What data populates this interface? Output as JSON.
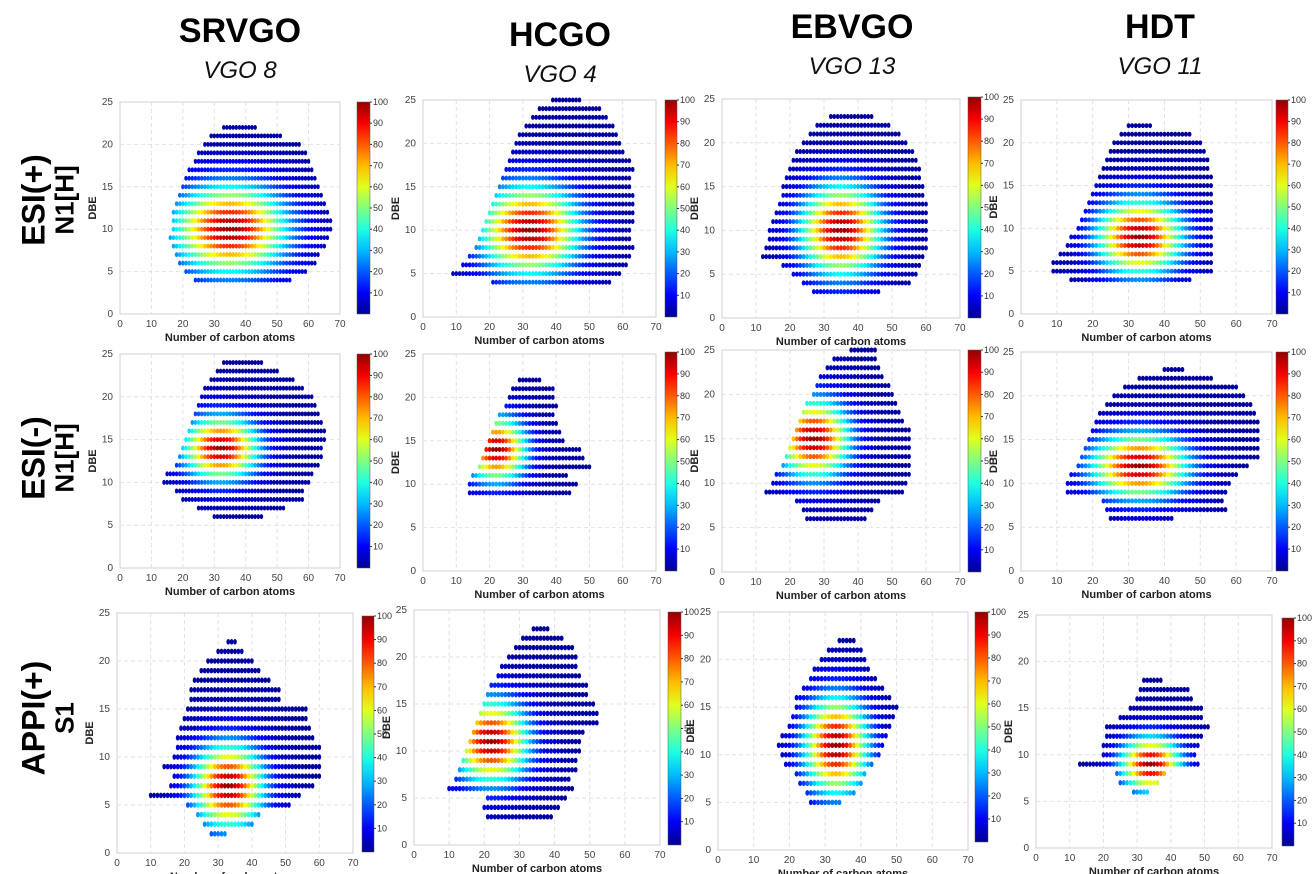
{
  "columns": [
    {
      "name": "SRVGO",
      "sub": "VGO 8"
    },
    {
      "name": "HCGO",
      "sub": "VGO 4"
    },
    {
      "name": "EBVGO",
      "sub": "VGO 13"
    },
    {
      "name": "HDT",
      "sub": "VGO 11"
    }
  ],
  "rows": [
    {
      "line1": "ESI(+)",
      "line2": "N1[H]"
    },
    {
      "line1": "ESI(-)",
      "line2": "N1[H]"
    },
    {
      "line1": "APPI(+)",
      "line2": "S1"
    }
  ],
  "axes": {
    "xlabel": "Number of carbon atoms",
    "ylabel": "DBE",
    "xlim": [
      0,
      70
    ],
    "ylim": [
      0,
      25
    ],
    "xticks": [
      0,
      10,
      20,
      30,
      40,
      50,
      60,
      70
    ],
    "yticks": [
      0,
      5,
      10,
      15,
      20,
      25
    ],
    "grid": true
  },
  "colorbar": {
    "min": 0,
    "max": 100,
    "ticks": [
      10,
      20,
      30,
      40,
      50,
      60,
      70,
      80,
      90,
      100
    ],
    "colormap": "jet"
  },
  "chart_data": [
    {
      "type": "heatmap",
      "row": "ESI(+) N1[H]",
      "column": "SRVGO",
      "sample": "VGO 8",
      "dbe_min": 4,
      "dbe_max": 22,
      "x_center": 35,
      "y_center": 10,
      "x_spread": 12,
      "y_spread": 3.5,
      "rows": [
        [
          4,
          24,
          54
        ],
        [
          5,
          21,
          59
        ],
        [
          6,
          19,
          62
        ],
        [
          7,
          18,
          63
        ],
        [
          8,
          17,
          65
        ],
        [
          9,
          16,
          66
        ],
        [
          10,
          17,
          67
        ],
        [
          11,
          17,
          67
        ],
        [
          12,
          17,
          66
        ],
        [
          13,
          18,
          65
        ],
        [
          14,
          19,
          64
        ],
        [
          15,
          20,
          63
        ],
        [
          16,
          21,
          62
        ],
        [
          17,
          22,
          61
        ],
        [
          18,
          24,
          60
        ],
        [
          19,
          25,
          59
        ],
        [
          20,
          27,
          57
        ],
        [
          21,
          29,
          51
        ],
        [
          22,
          33,
          43
        ]
      ]
    },
    {
      "type": "heatmap",
      "row": "ESI(+) N1[H]",
      "column": "HCGO",
      "sample": "VGO 4",
      "dbe_min": 4,
      "dbe_max": 25,
      "x_center": 32,
      "y_center": 10,
      "x_spread": 10,
      "y_spread": 3.5,
      "rows": [
        [
          4,
          21,
          56
        ],
        [
          5,
          9,
          59
        ],
        [
          6,
          12,
          61
        ],
        [
          7,
          14,
          62
        ],
        [
          8,
          16,
          63
        ],
        [
          9,
          17,
          62
        ],
        [
          10,
          18,
          62
        ],
        [
          11,
          19,
          63
        ],
        [
          12,
          20,
          63
        ],
        [
          13,
          21,
          63
        ],
        [
          14,
          22,
          63
        ],
        [
          15,
          23,
          62
        ],
        [
          16,
          24,
          62
        ],
        [
          17,
          25,
          63
        ],
        [
          18,
          26,
          62
        ],
        [
          19,
          27,
          60
        ],
        [
          20,
          28,
          59
        ],
        [
          21,
          29,
          58
        ],
        [
          22,
          31,
          57
        ],
        [
          23,
          33,
          55
        ],
        [
          24,
          35,
          53
        ],
        [
          25,
          39,
          47
        ]
      ]
    },
    {
      "type": "heatmap",
      "row": "ESI(+) N1[H]",
      "column": "EBVGO",
      "sample": "VGO 13",
      "dbe_min": 3,
      "dbe_max": 23,
      "x_center": 35,
      "y_center": 10,
      "x_spread": 8,
      "y_spread": 3.5,
      "rows": [
        [
          3,
          27,
          46
        ],
        [
          4,
          24,
          55
        ],
        [
          5,
          21,
          57
        ],
        [
          6,
          18,
          58
        ],
        [
          7,
          12,
          59
        ],
        [
          8,
          13,
          60
        ],
        [
          9,
          14,
          60
        ],
        [
          10,
          14,
          60
        ],
        [
          11,
          15,
          60
        ],
        [
          12,
          16,
          60
        ],
        [
          13,
          17,
          60
        ],
        [
          14,
          18,
          59
        ],
        [
          15,
          18,
          59
        ],
        [
          16,
          19,
          58
        ],
        [
          17,
          20,
          58
        ],
        [
          18,
          21,
          57
        ],
        [
          19,
          22,
          56
        ],
        [
          20,
          24,
          54
        ],
        [
          21,
          26,
          52
        ],
        [
          22,
          28,
          49
        ],
        [
          23,
          32,
          44
        ]
      ]
    },
    {
      "type": "heatmap",
      "row": "ESI(+) N1[H]",
      "column": "HDT",
      "sample": "VGO 11",
      "dbe_min": 4,
      "dbe_max": 22,
      "x_center": 33,
      "y_center": 9,
      "x_spread": 8,
      "y_spread": 3,
      "rows": [
        [
          4,
          14,
          47
        ],
        [
          5,
          9,
          53
        ],
        [
          6,
          9,
          53
        ],
        [
          7,
          11,
          53
        ],
        [
          8,
          13,
          53
        ],
        [
          9,
          14,
          53
        ],
        [
          10,
          16,
          53
        ],
        [
          11,
          17,
          53
        ],
        [
          12,
          18,
          53
        ],
        [
          13,
          19,
          53
        ],
        [
          14,
          20,
          53
        ],
        [
          15,
          21,
          53
        ],
        [
          16,
          22,
          53
        ],
        [
          17,
          23,
          52
        ],
        [
          18,
          24,
          52
        ],
        [
          19,
          25,
          51
        ],
        [
          20,
          26,
          50
        ],
        [
          21,
          28,
          47
        ],
        [
          22,
          30,
          36
        ]
      ]
    },
    {
      "type": "heatmap",
      "row": "ESI(-) N1[H]",
      "column": "SRVGO",
      "sample": "VGO 8",
      "dbe_min": 6,
      "dbe_max": 24,
      "x_center": 32,
      "y_center": 14,
      "x_spread": 8,
      "y_spread": 2.5,
      "rows": [
        [
          6,
          30,
          45
        ],
        [
          7,
          25,
          52
        ],
        [
          8,
          20,
          58
        ],
        [
          9,
          18,
          58
        ],
        [
          10,
          14,
          60
        ],
        [
          11,
          15,
          61
        ],
        [
          12,
          18,
          63
        ],
        [
          13,
          19,
          64
        ],
        [
          14,
          20,
          64
        ],
        [
          15,
          21,
          65
        ],
        [
          16,
          22,
          65
        ],
        [
          17,
          23,
          64
        ],
        [
          18,
          24,
          63
        ],
        [
          19,
          25,
          62
        ],
        [
          20,
          26,
          61
        ],
        [
          21,
          27,
          58
        ],
        [
          22,
          29,
          55
        ],
        [
          23,
          31,
          50
        ],
        [
          24,
          33,
          45
        ]
      ]
    },
    {
      "type": "heatmap",
      "row": "ESI(-) N1[H]",
      "column": "HCGO",
      "sample": "VGO 4",
      "dbe_min": 9,
      "dbe_max": 22,
      "x_center": 22,
      "y_center": 14,
      "x_spread": 6,
      "y_spread": 2.5,
      "rows": [
        [
          9,
          14,
          44
        ],
        [
          10,
          14,
          46
        ],
        [
          11,
          15,
          43
        ],
        [
          12,
          17,
          50
        ],
        [
          13,
          18,
          48
        ],
        [
          14,
          19,
          47
        ],
        [
          15,
          20,
          42
        ],
        [
          16,
          21,
          41
        ],
        [
          17,
          22,
          40
        ],
        [
          18,
          23,
          39
        ],
        [
          19,
          25,
          40
        ],
        [
          20,
          26,
          39
        ],
        [
          21,
          27,
          39
        ],
        [
          22,
          29,
          35
        ]
      ]
    },
    {
      "type": "heatmap",
      "row": "ESI(-) N1[H]",
      "column": "EBVGO",
      "sample": "VGO 13",
      "dbe_min": 6,
      "dbe_max": 25,
      "x_center": 27,
      "y_center": 15,
      "x_spread": 7,
      "y_spread": 3,
      "rows": [
        [
          6,
          25,
          42
        ],
        [
          7,
          24,
          44
        ],
        [
          8,
          22,
          46
        ],
        [
          9,
          13,
          53
        ],
        [
          10,
          15,
          54
        ],
        [
          11,
          16,
          55
        ],
        [
          12,
          18,
          55
        ],
        [
          13,
          19,
          55
        ],
        [
          14,
          20,
          55
        ],
        [
          15,
          21,
          55
        ],
        [
          16,
          22,
          55
        ],
        [
          17,
          23,
          53
        ],
        [
          18,
          24,
          52
        ],
        [
          19,
          25,
          51
        ],
        [
          20,
          27,
          50
        ],
        [
          21,
          28,
          49
        ],
        [
          22,
          29,
          47
        ],
        [
          23,
          31,
          46
        ],
        [
          24,
          33,
          45
        ],
        [
          25,
          38,
          45
        ]
      ]
    },
    {
      "type": "heatmap",
      "row": "ESI(-) N1[H]",
      "column": "HDT",
      "sample": "VGO 11",
      "dbe_min": 6,
      "dbe_max": 23,
      "x_center": 33,
      "y_center": 12,
      "x_spread": 9,
      "y_spread": 2.5,
      "rows": [
        [
          6,
          25,
          42
        ],
        [
          7,
          24,
          57
        ],
        [
          8,
          23,
          56
        ],
        [
          9,
          13,
          57
        ],
        [
          10,
          13,
          58
        ],
        [
          11,
          14,
          60
        ],
        [
          12,
          16,
          63
        ],
        [
          13,
          17,
          66
        ],
        [
          14,
          18,
          66
        ],
        [
          15,
          19,
          66
        ],
        [
          16,
          20,
          66
        ],
        [
          17,
          21,
          66
        ],
        [
          18,
          22,
          65
        ],
        [
          19,
          24,
          64
        ],
        [
          20,
          26,
          62
        ],
        [
          21,
          29,
          60
        ],
        [
          22,
          33,
          53
        ],
        [
          23,
          40,
          45
        ]
      ]
    },
    {
      "type": "heatmap",
      "row": "APPI(+) S1",
      "column": "SRVGO",
      "sample": "VGO 8",
      "dbe_min": 2,
      "dbe_max": 22,
      "x_center": 33,
      "y_center": 7,
      "x_spread": 7,
      "y_spread": 3,
      "rows": [
        [
          2,
          28,
          32
        ],
        [
          3,
          26,
          40
        ],
        [
          4,
          24,
          42
        ],
        [
          5,
          21,
          51
        ],
        [
          6,
          10,
          54
        ],
        [
          7,
          16,
          58
        ],
        [
          8,
          17,
          60
        ],
        [
          9,
          14,
          60
        ],
        [
          10,
          17,
          60
        ],
        [
          11,
          18,
          60
        ],
        [
          12,
          18,
          58
        ],
        [
          13,
          19,
          57
        ],
        [
          14,
          20,
          56
        ],
        [
          15,
          21,
          56
        ],
        [
          16,
          22,
          48
        ],
        [
          17,
          22,
          48
        ],
        [
          18,
          23,
          45
        ],
        [
          19,
          25,
          42
        ],
        [
          20,
          27,
          40
        ],
        [
          21,
          30,
          37
        ],
        [
          22,
          33,
          35
        ]
      ]
    },
    {
      "type": "heatmap",
      "row": "APPI(+) S1",
      "column": "HCGO",
      "sample": "VGO 4",
      "dbe_min": 3,
      "dbe_max": 23,
      "x_center": 22,
      "y_center": 11,
      "x_spread": 7,
      "y_spread": 3,
      "rows": [
        [
          3,
          21,
          39
        ],
        [
          4,
          20,
          41
        ],
        [
          5,
          21,
          43
        ],
        [
          6,
          10,
          45
        ],
        [
          7,
          12,
          44
        ],
        [
          8,
          13,
          46
        ],
        [
          9,
          14,
          46
        ],
        [
          10,
          15,
          47
        ],
        [
          11,
          16,
          47
        ],
        [
          12,
          17,
          48
        ],
        [
          13,
          18,
          52
        ],
        [
          14,
          19,
          52
        ],
        [
          15,
          20,
          51
        ],
        [
          16,
          21,
          49
        ],
        [
          17,
          22,
          49
        ],
        [
          18,
          24,
          47
        ],
        [
          19,
          25,
          46
        ],
        [
          20,
          27,
          46
        ],
        [
          21,
          29,
          45
        ],
        [
          22,
          31,
          42
        ],
        [
          23,
          34,
          38
        ]
      ]
    },
    {
      "type": "heatmap",
      "row": "APPI(+) S1",
      "column": "EBVGO",
      "sample": "VGO 13",
      "dbe_min": 5,
      "dbe_max": 22,
      "x_center": 33,
      "y_center": 11,
      "x_spread": 6,
      "y_spread": 3.5,
      "rows": [
        [
          5,
          26,
          34
        ],
        [
          6,
          25,
          38
        ],
        [
          7,
          23,
          40
        ],
        [
          8,
          22,
          41
        ],
        [
          9,
          19,
          43
        ],
        [
          10,
          18,
          45
        ],
        [
          11,
          17,
          46
        ],
        [
          12,
          18,
          47
        ],
        [
          13,
          20,
          48
        ],
        [
          14,
          21,
          49
        ],
        [
          15,
          22,
          50
        ],
        [
          16,
          22,
          48
        ],
        [
          17,
          24,
          46
        ],
        [
          18,
          26,
          44
        ],
        [
          19,
          27,
          42
        ],
        [
          20,
          29,
          41
        ],
        [
          21,
          31,
          40
        ],
        [
          22,
          34,
          38
        ]
      ]
    },
    {
      "type": "heatmap",
      "row": "APPI(+) S1",
      "column": "HDT",
      "sample": "VGO 11",
      "dbe_min": 6,
      "dbe_max": 18,
      "x_center": 34,
      "y_center": 9,
      "x_spread": 6,
      "y_spread": 2,
      "rows": [
        [
          6,
          29,
          33
        ],
        [
          7,
          25,
          36
        ],
        [
          8,
          24,
          38
        ],
        [
          9,
          13,
          48
        ],
        [
          10,
          20,
          47
        ],
        [
          11,
          20,
          48
        ],
        [
          12,
          21,
          49
        ],
        [
          13,
          21,
          51
        ],
        [
          14,
          25,
          49
        ],
        [
          15,
          28,
          49
        ],
        [
          16,
          30,
          46
        ],
        [
          17,
          31,
          45
        ],
        [
          18,
          32,
          37
        ]
      ]
    }
  ]
}
